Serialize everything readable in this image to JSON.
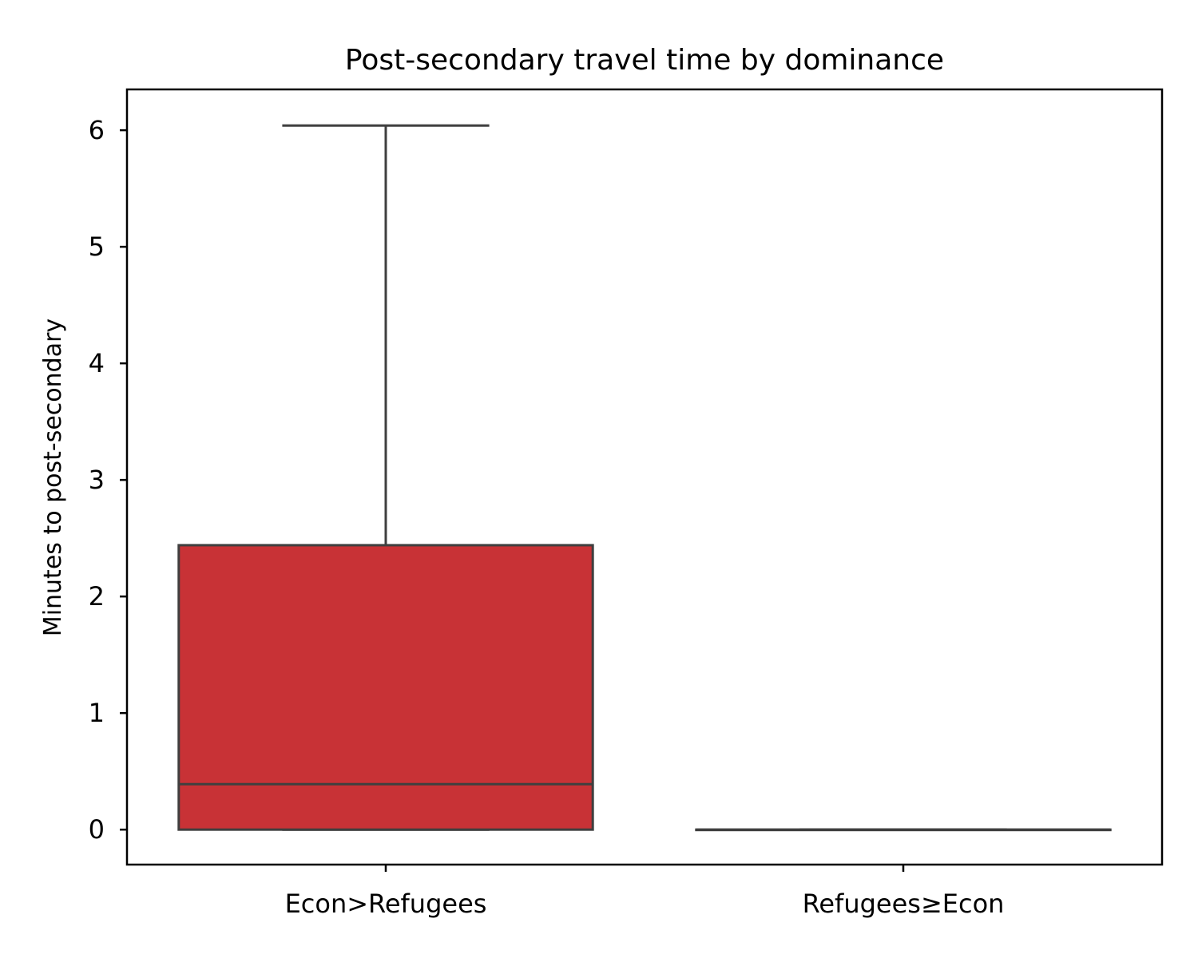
{
  "chart_data": {
    "type": "box",
    "title": "Post-secondary travel time by dominance",
    "xlabel": "",
    "ylabel": "Minutes to post-secondary",
    "ylim": [
      -0.3,
      6.35
    ],
    "yticks": [
      0,
      1,
      2,
      3,
      4,
      5,
      6
    ],
    "categories": [
      "Econ>Refugees",
      "Refugees≥Econ"
    ],
    "boxes": [
      {
        "category": "Econ>Refugees",
        "whisker_low": 0,
        "q1": 0,
        "median": 0.39,
        "q3": 2.44,
        "whisker_high": 6.04,
        "color": "#c83236"
      },
      {
        "category": "Refugees≥Econ",
        "whisker_low": 0,
        "q1": 0,
        "median": 0,
        "q3": 0,
        "whisker_high": 0,
        "color": "#c83236"
      }
    ],
    "grid": false,
    "legend": "none"
  },
  "colors": {
    "box_edge": "#3f3f3f",
    "axis": "#000000"
  }
}
